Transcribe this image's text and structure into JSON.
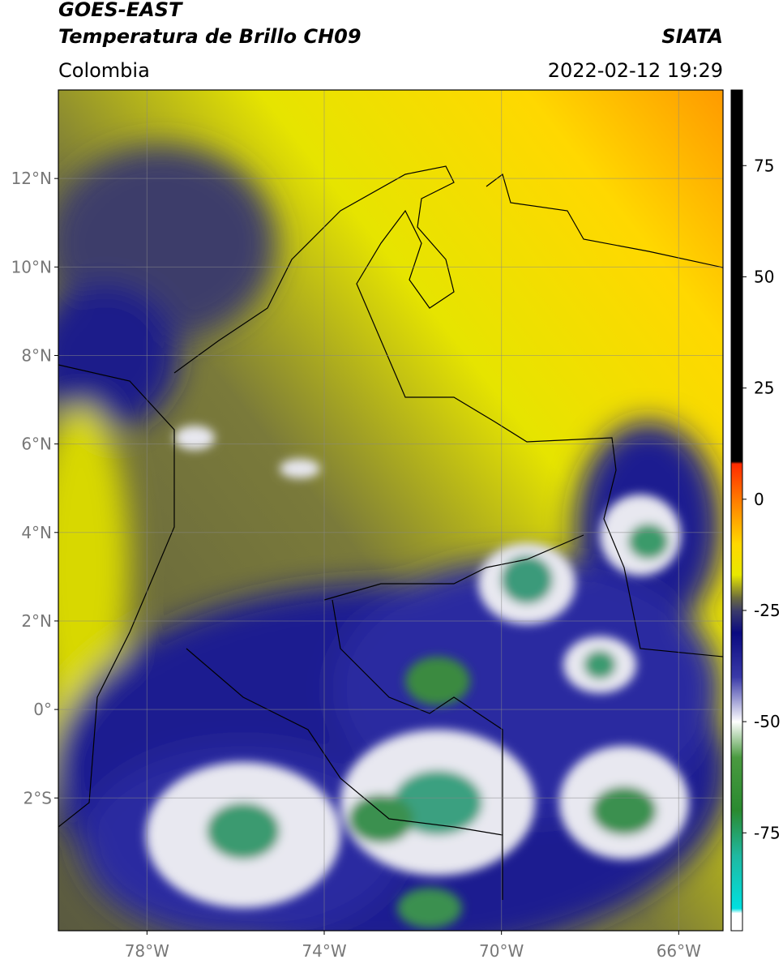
{
  "header": {
    "line1": "GOES-EAST",
    "line2": "Temperatura de Brillo CH09",
    "org": "SIATA",
    "region": "Colombia",
    "datetime": "2022-02-12 19:29"
  },
  "map": {
    "lonlim": [
      -80,
      -65
    ],
    "latlim": [
      -5,
      14
    ],
    "xticks": [
      {
        "value": -78,
        "label": "78°W"
      },
      {
        "value": -74,
        "label": "74°W"
      },
      {
        "value": -70,
        "label": "70°W"
      },
      {
        "value": -66,
        "label": "66°W"
      }
    ],
    "yticks": [
      {
        "value": 12,
        "label": "12°N"
      },
      {
        "value": 10,
        "label": "10°N"
      },
      {
        "value": 8,
        "label": "8°N"
      },
      {
        "value": 6,
        "label": "6°N"
      },
      {
        "value": 4,
        "label": "4°N"
      },
      {
        "value": 2,
        "label": "2°N"
      },
      {
        "value": 0,
        "label": "0°"
      },
      {
        "value": -2,
        "label": "2°S"
      }
    ],
    "grid": true
  },
  "colorbar": {
    "lim": [
      -97,
      92
    ],
    "ticks": [
      75,
      50,
      25,
      0,
      -25,
      -50,
      -75
    ],
    "stops": [
      {
        "value": 92,
        "color": "#000000"
      },
      {
        "value": 8.5,
        "color": "#000000"
      },
      {
        "value": 8,
        "color": "#ff2a00"
      },
      {
        "value": 0,
        "color": "#ff7a00"
      },
      {
        "value": -10,
        "color": "#ffd800"
      },
      {
        "value": -17,
        "color": "#e8e800"
      },
      {
        "value": -22,
        "color": "#6e6e3c"
      },
      {
        "value": -25,
        "color": "#3c3c6a"
      },
      {
        "value": -30,
        "color": "#0a0a80"
      },
      {
        "value": -40,
        "color": "#3a3aa8"
      },
      {
        "value": -50,
        "color": "#ffffff"
      },
      {
        "value": -58,
        "color": "#4a9a40"
      },
      {
        "value": -70,
        "color": "#2a8a30"
      },
      {
        "value": -80,
        "color": "#20b8a0"
      },
      {
        "value": -92,
        "color": "#00e0e0"
      },
      {
        "value": -93,
        "color": "#ffffff"
      },
      {
        "value": -97,
        "color": "#ffffff"
      }
    ]
  }
}
